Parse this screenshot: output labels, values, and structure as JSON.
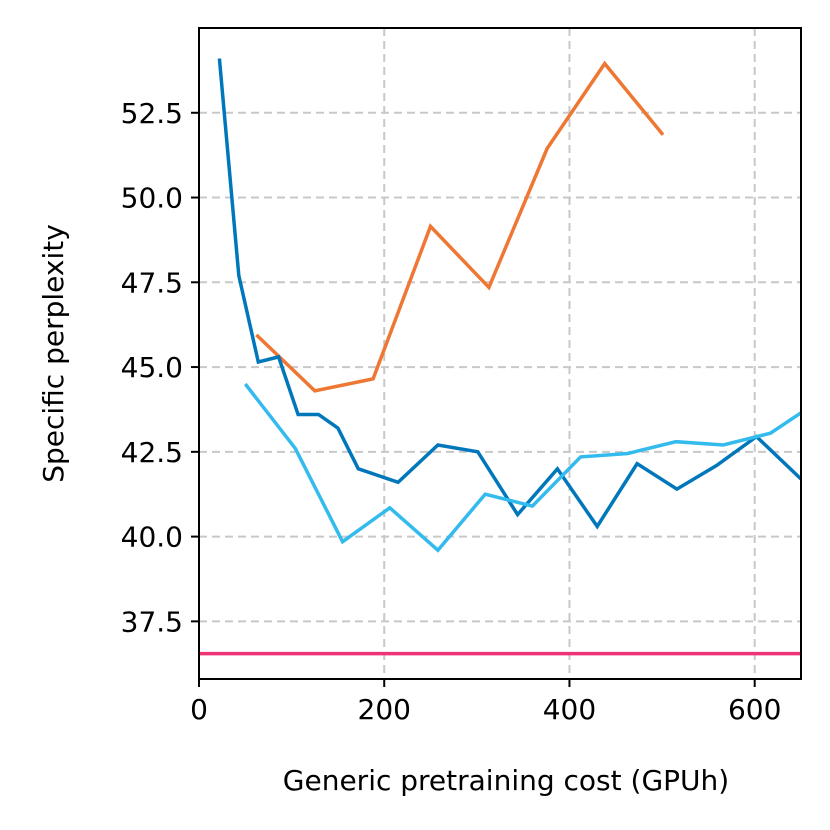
{
  "chart_data": {
    "type": "line",
    "title": "",
    "xlabel": "Generic pretraining cost (GPUh)",
    "ylabel": "Specific perplexity",
    "xlim": [
      0,
      650
    ],
    "ylim": [
      35.8,
      55.0
    ],
    "xticks": [
      0,
      200,
      400,
      600
    ],
    "xtick_labels": [
      "0",
      "200",
      "400",
      "600"
    ],
    "yticks": [
      37.5,
      40.0,
      42.5,
      45.0,
      47.5,
      50.0,
      52.5
    ],
    "ytick_labels": [
      "37.5",
      "40.0",
      "42.5",
      "45.0",
      "47.5",
      "50.0",
      "52.5"
    ],
    "grid": true,
    "colors": {
      "orange": "#ee7733",
      "dark_blue": "#0077bb",
      "light_blue": "#33bbee",
      "magenta": "#ee3377",
      "grid": "#c8c8c8"
    },
    "series": [
      {
        "name": "orange",
        "color": "#ee7733",
        "x": [
          62,
          125,
          188,
          250,
          313,
          376,
          438,
          501
        ],
        "y": [
          45.95,
          44.3,
          44.65,
          49.15,
          47.35,
          51.45,
          53.95,
          51.85
        ]
      },
      {
        "name": "dark_blue",
        "color": "#0077bb",
        "x": [
          22,
          43,
          64,
          86,
          107,
          129,
          150,
          172,
          215,
          258,
          301,
          344,
          387,
          430,
          473,
          516,
          559,
          602,
          650
        ],
        "y": [
          54.1,
          47.7,
          45.15,
          45.3,
          43.6,
          43.6,
          43.2,
          42.0,
          41.6,
          42.7,
          42.5,
          40.65,
          42.0,
          40.3,
          42.15,
          41.4,
          42.1,
          42.95,
          41.7
        ]
      },
      {
        "name": "light_blue",
        "color": "#33bbee",
        "x": [
          50,
          104,
          155,
          206,
          258,
          309,
          360,
          412,
          463,
          515,
          566,
          617,
          650
        ],
        "y": [
          44.5,
          42.6,
          39.85,
          40.85,
          39.6,
          41.25,
          40.9,
          42.35,
          42.45,
          42.8,
          42.7,
          43.05,
          43.65
        ]
      }
    ],
    "hlines": [
      {
        "name": "magenta",
        "color": "#ee3377",
        "y": 36.55
      }
    ]
  }
}
